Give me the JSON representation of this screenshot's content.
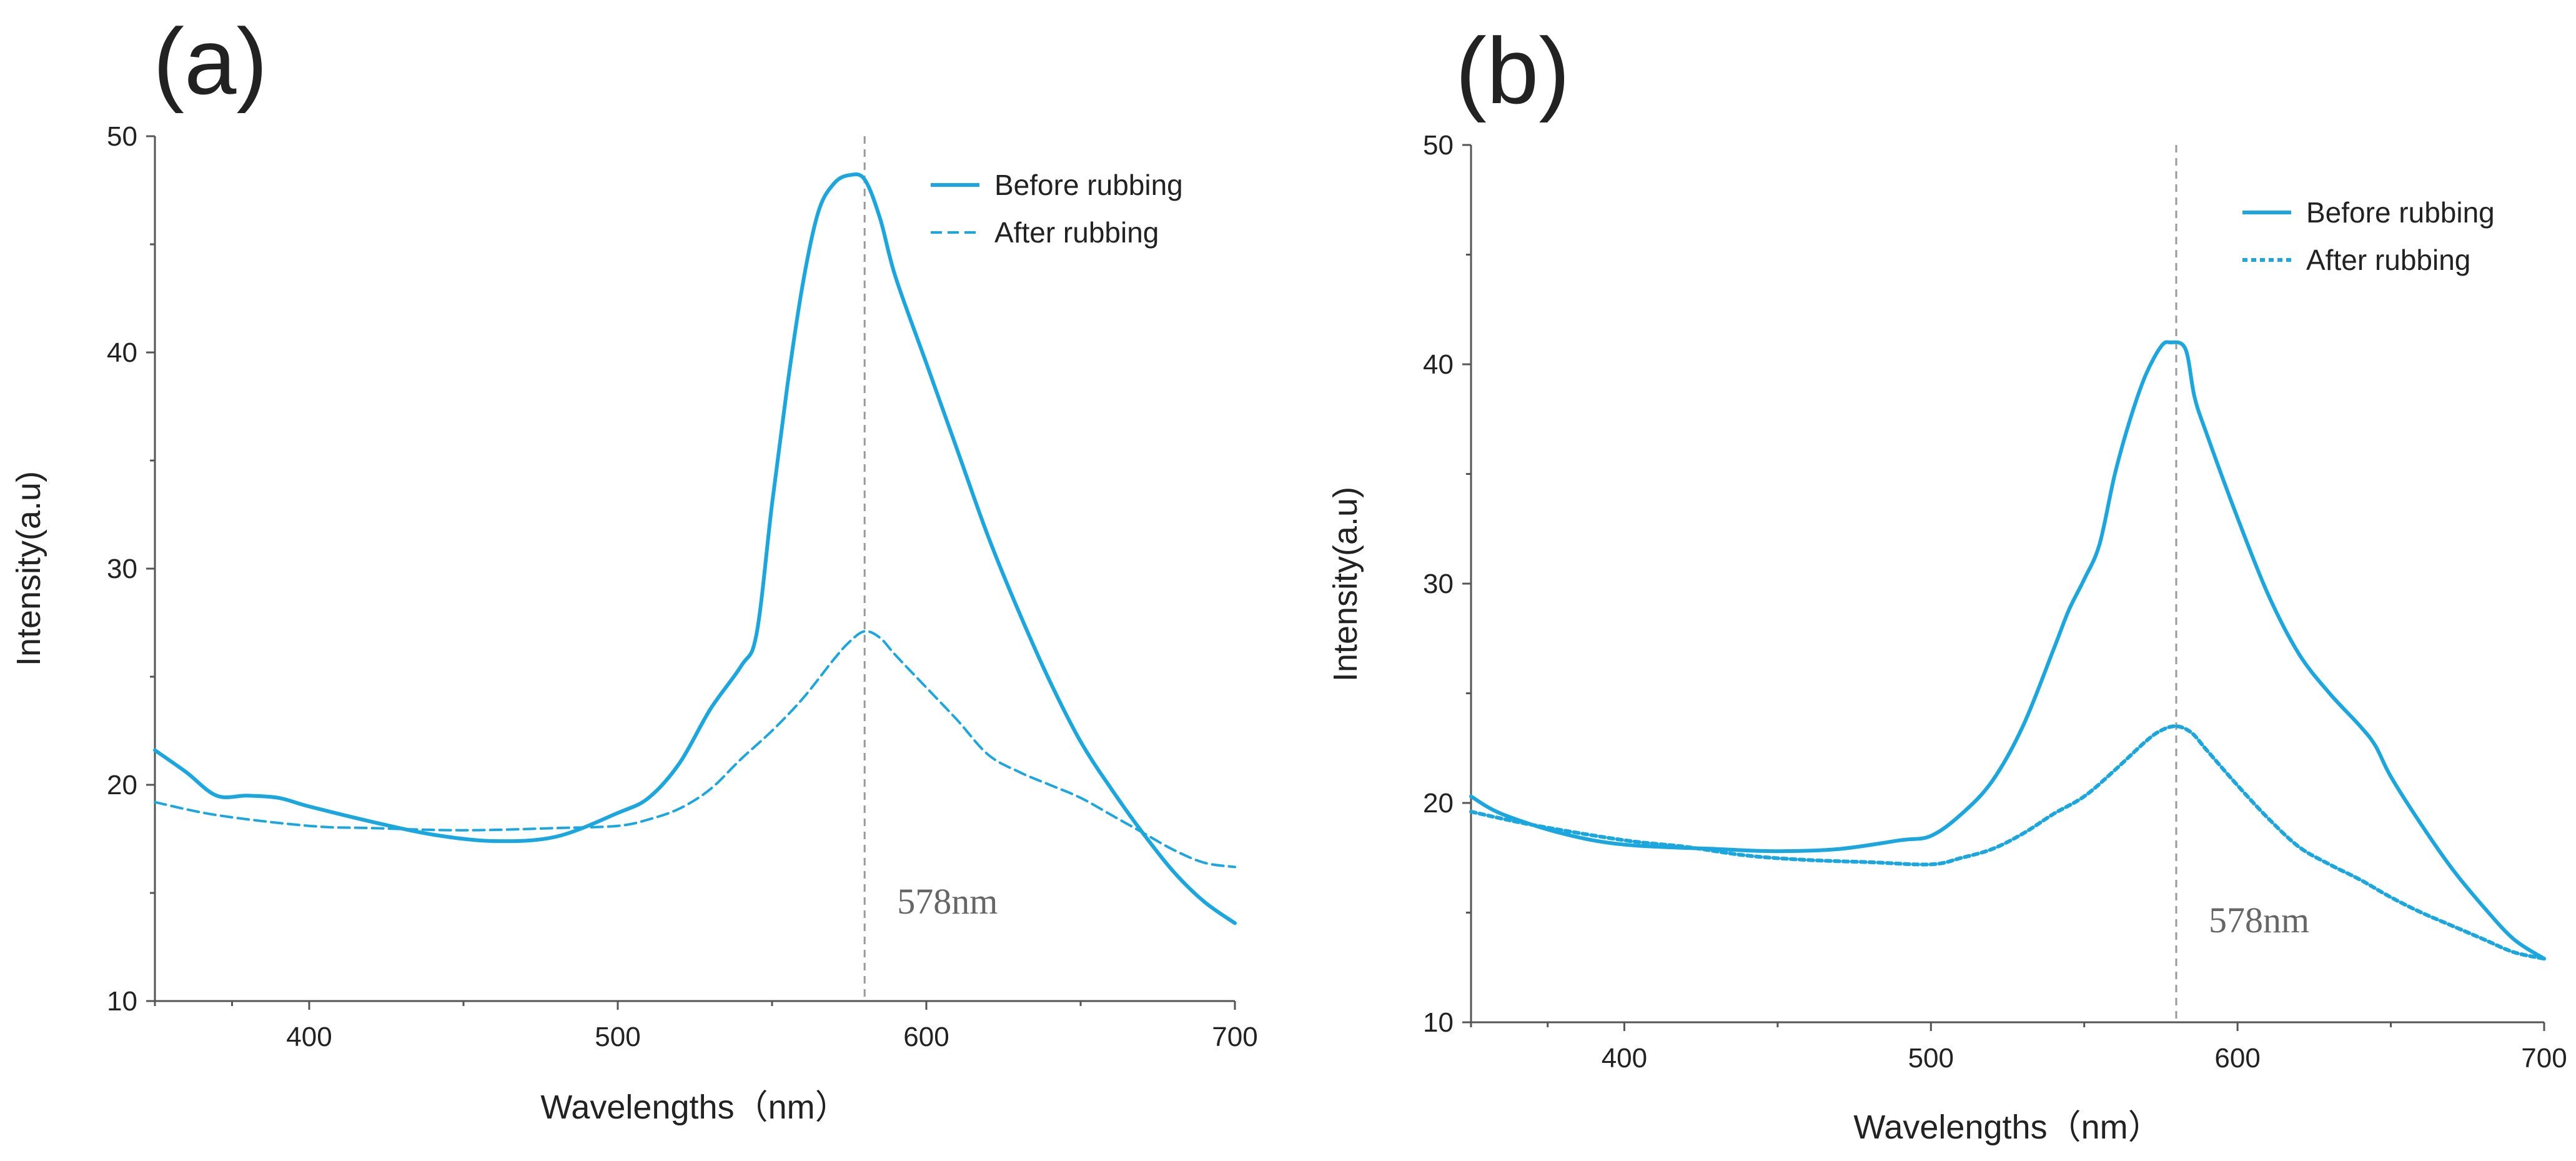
{
  "chart_data": [
    {
      "type": "line",
      "panel_label": "(a)",
      "title": "",
      "xlabel": "Wavelengths（nm）",
      "ylabel": "Intensity(a.u)",
      "xlim": [
        350,
        700
      ],
      "ylim": [
        10,
        50
      ],
      "xticks": [
        400,
        500,
        600,
        700
      ],
      "yticks": [
        10,
        20,
        30,
        40,
        50
      ],
      "grid": false,
      "legend_position": "top-right",
      "annotation": {
        "text": "578nm",
        "x": 580
      },
      "series": [
        {
          "name": "Before rubbing",
          "style": "solid",
          "color": "#1aa7e0",
          "x": [
            350,
            360,
            370,
            380,
            390,
            400,
            420,
            440,
            460,
            480,
            500,
            510,
            520,
            530,
            540,
            545,
            550,
            555,
            560,
            565,
            570,
            575,
            580,
            585,
            590,
            600,
            610,
            620,
            630,
            640,
            650,
            660,
            670,
            680,
            690,
            700
          ],
          "y": [
            21.6,
            20.6,
            19.5,
            19.5,
            19.4,
            19.0,
            18.3,
            17.7,
            17.4,
            17.6,
            18.7,
            19.4,
            21.0,
            23.5,
            25.5,
            27.0,
            33.0,
            38.5,
            43.2,
            46.5,
            47.8,
            48.2,
            48.0,
            46.2,
            43.5,
            39.5,
            35.5,
            31.5,
            28.0,
            24.8,
            22.0,
            19.8,
            17.8,
            16.0,
            14.6,
            13.6
          ]
        },
        {
          "name": "After rubbing",
          "style": "dashed",
          "color": "#1aa7e0",
          "x": [
            350,
            370,
            400,
            420,
            450,
            480,
            500,
            510,
            520,
            530,
            540,
            550,
            560,
            570,
            575,
            580,
            585,
            590,
            600,
            610,
            620,
            630,
            640,
            650,
            660,
            670,
            680,
            690,
            700
          ],
          "y": [
            19.2,
            18.6,
            18.1,
            18.0,
            17.9,
            18.0,
            18.1,
            18.4,
            18.9,
            19.8,
            21.2,
            22.5,
            24.0,
            25.8,
            26.6,
            27.1,
            26.8,
            26.0,
            24.5,
            23.0,
            21.4,
            20.6,
            20.0,
            19.4,
            18.6,
            17.8,
            17.0,
            16.4,
            16.2
          ]
        }
      ]
    },
    {
      "type": "line",
      "panel_label": "(b)",
      "title": "",
      "xlabel": "Wavelengths（nm）",
      "ylabel": "Intensity(a.u)",
      "xlim": [
        350,
        700
      ],
      "ylim": [
        10,
        50
      ],
      "xticks": [
        400,
        500,
        600,
        700
      ],
      "yticks": [
        10,
        20,
        30,
        40,
        50
      ],
      "grid": false,
      "legend_position": "top-right",
      "annotation": {
        "text": "578nm",
        "x": 580
      },
      "series": [
        {
          "name": "Before rubbing",
          "style": "solid",
          "color": "#1aa7e0",
          "x": [
            350,
            360,
            380,
            400,
            430,
            450,
            470,
            490,
            500,
            510,
            520,
            530,
            540,
            545,
            550,
            555,
            560,
            565,
            570,
            575,
            578,
            583,
            586,
            590,
            600,
            610,
            620,
            630,
            640,
            645,
            650,
            660,
            670,
            680,
            690,
            700
          ],
          "y": [
            20.3,
            19.5,
            18.6,
            18.1,
            17.9,
            17.8,
            17.9,
            18.3,
            18.5,
            19.5,
            21.0,
            23.5,
            27.0,
            28.8,
            30.2,
            31.8,
            35.0,
            37.5,
            39.5,
            40.8,
            41.0,
            40.7,
            38.5,
            36.8,
            33.0,
            29.5,
            26.8,
            25.0,
            23.5,
            22.6,
            21.2,
            19.0,
            17.0,
            15.3,
            13.8,
            12.9
          ]
        },
        {
          "name": "After rubbing",
          "style": "dotted",
          "color": "#1aa7e0",
          "x": [
            350,
            370,
            400,
            420,
            440,
            460,
            480,
            500,
            510,
            520,
            530,
            540,
            550,
            560,
            570,
            575,
            580,
            585,
            590,
            600,
            610,
            620,
            630,
            640,
            650,
            660,
            670,
            680,
            690,
            700
          ],
          "y": [
            19.6,
            19.0,
            18.3,
            18.0,
            17.6,
            17.4,
            17.3,
            17.2,
            17.5,
            17.9,
            18.6,
            19.5,
            20.3,
            21.5,
            22.8,
            23.3,
            23.5,
            23.2,
            22.4,
            20.8,
            19.3,
            18.0,
            17.2,
            16.5,
            15.7,
            15.0,
            14.4,
            13.8,
            13.2,
            12.9
          ]
        }
      ]
    }
  ]
}
